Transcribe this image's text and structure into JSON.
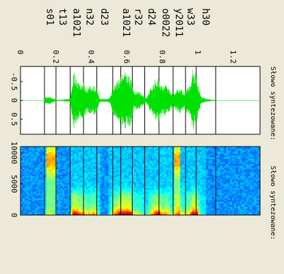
{
  "chart_data": [
    {
      "type": "line",
      "orientation": "rotated-90",
      "title": "",
      "side_label": "Słowo syntezowane:",
      "xlim": [
        0,
        1.35
      ],
      "ylim": [
        -0.9,
        0.9
      ],
      "x_ticks": [
        "0",
        "0.2",
        "0.4",
        "0.6",
        "0.8",
        "1",
        "1.2"
      ],
      "y_ticks": [
        "-0.5",
        "0",
        "0.5"
      ],
      "series_color": "#00e000",
      "segment_boundaries": [
        0.135,
        0.2,
        0.28,
        0.355,
        0.43,
        0.52,
        0.565,
        0.63,
        0.7,
        0.78,
        0.86,
        0.93,
        0.99,
        1.1
      ],
      "phoneme_labels": [
        {
          "label": "s01",
          "x": 0.168
        },
        {
          "label": "t13",
          "x": 0.24
        },
        {
          "label": "a1021",
          "x": 0.318
        },
        {
          "label": "n32",
          "x": 0.392
        },
        {
          "label": "d23",
          "x": 0.475
        },
        {
          "label": "a1021",
          "x": 0.597
        },
        {
          "label": "r32",
          "x": 0.665
        },
        {
          "label": "d24",
          "x": 0.74
        },
        {
          "label": "o0022",
          "x": 0.82
        },
        {
          "label": "y2011",
          "x": 0.895
        },
        {
          "label": "w33",
          "x": 0.96
        },
        {
          "label": "h30",
          "x": 1.045
        }
      ],
      "envelope": [
        [
          0.0,
          0.0
        ],
        [
          0.13,
          0.0
        ],
        [
          0.14,
          0.08
        ],
        [
          0.165,
          0.1
        ],
        [
          0.19,
          0.04
        ],
        [
          0.21,
          0.02
        ],
        [
          0.23,
          0.01
        ],
        [
          0.25,
          0.03
        ],
        [
          0.28,
          0.04
        ],
        [
          0.29,
          0.4
        ],
        [
          0.3,
          0.8
        ],
        [
          0.32,
          0.55
        ],
        [
          0.34,
          0.45
        ],
        [
          0.355,
          0.5
        ],
        [
          0.37,
          0.32
        ],
        [
          0.39,
          0.38
        ],
        [
          0.41,
          0.42
        ],
        [
          0.43,
          0.33
        ],
        [
          0.445,
          0.05
        ],
        [
          0.46,
          0.04
        ],
        [
          0.49,
          0.04
        ],
        [
          0.505,
          0.1
        ],
        [
          0.52,
          0.35
        ],
        [
          0.54,
          0.5
        ],
        [
          0.56,
          0.6
        ],
        [
          0.58,
          0.8
        ],
        [
          0.6,
          0.72
        ],
        [
          0.62,
          0.68
        ],
        [
          0.64,
          0.2
        ],
        [
          0.66,
          0.28
        ],
        [
          0.69,
          0.15
        ],
        [
          0.71,
          0.05
        ],
        [
          0.73,
          0.3
        ],
        [
          0.76,
          0.55
        ],
        [
          0.78,
          0.6
        ],
        [
          0.8,
          0.35
        ],
        [
          0.82,
          0.45
        ],
        [
          0.84,
          0.3
        ],
        [
          0.86,
          0.15
        ],
        [
          0.88,
          0.3
        ],
        [
          0.9,
          0.35
        ],
        [
          0.92,
          0.2
        ],
        [
          0.94,
          0.35
        ],
        [
          0.96,
          0.4
        ],
        [
          0.97,
          0.88
        ],
        [
          0.98,
          0.7
        ],
        [
          0.99,
          0.75
        ],
        [
          1.0,
          0.4
        ],
        [
          1.02,
          0.08
        ],
        [
          1.05,
          0.04
        ],
        [
          1.1,
          0.0
        ],
        [
          1.35,
          0.0
        ]
      ]
    },
    {
      "type": "heatmap",
      "orientation": "rotated-90",
      "title": "",
      "side_label": "Słowo syntezowane:",
      "xlim": [
        0,
        1.35
      ],
      "ylim": [
        0,
        11000
      ],
      "x_ticks": [
        "0.2",
        "0.4",
        "0.6",
        "0.8",
        "1",
        "1.2"
      ],
      "y_ticks": [
        "0",
        "5000",
        "10000"
      ],
      "segment_boundaries": [
        0.135,
        0.2,
        0.28,
        0.355,
        0.43,
        0.52,
        0.565,
        0.63,
        0.7,
        0.78,
        0.86,
        0.93,
        0.99,
        1.1
      ]
    }
  ]
}
